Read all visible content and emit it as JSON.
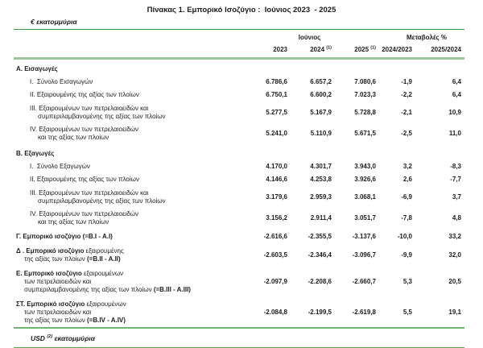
{
  "title": "Πίνακας 1. Εμπορικό Ισοζύγιο :  Ιούνιος 2023  - 2025",
  "unit_label": "€ εκατομμύρια",
  "header": {
    "period_group": "Ιούνιος",
    "changes_group": "Μεταβολές %",
    "years": [
      "2023",
      "2024",
      "2025"
    ],
    "year_sup": "(1)",
    "changes": [
      "2024/2023",
      "2025/2024"
    ]
  },
  "rows": [
    {
      "kind": "section",
      "lines": [
        [
          {
            "t": "Α. Εισαγωγές",
            "b": 1
          }
        ]
      ],
      "values": [
        "",
        "",
        "",
        "",
        ""
      ]
    },
    {
      "kind": "item",
      "lines": [
        [
          {
            "t": "I.  Σύνολο Εισαγωγών",
            "b": 0
          }
        ]
      ],
      "values": [
        "6.786,6",
        "6.657,2",
        "7.080,6",
        "-1,9",
        "6,4"
      ]
    },
    {
      "kind": "item",
      "lines": [
        [
          {
            "t": "II. Εξαιρουμένης  της αξίας των πλοίων",
            "b": 0
          }
        ]
      ],
      "values": [
        "6.750,1",
        "6.600,2",
        "7.023,3",
        "-2,2",
        "6,4"
      ]
    },
    {
      "kind": "item",
      "lines": [
        [
          {
            "t": "III. Εξαιρουμένων των πετρελαιοειδών και",
            "b": 0
          }
        ],
        [
          {
            "t": "συμπεριλαμβανομένης της αξίας των πλοίων",
            "b": 0
          }
        ]
      ],
      "values": [
        "5.277,5",
        "5.167,9",
        "5.728,8",
        "-2,1",
        "10,9"
      ]
    },
    {
      "kind": "item",
      "lines": [
        [
          {
            "t": "IV. Εξαιρουμένων των πετρελαιοειδών",
            "b": 0
          }
        ],
        [
          {
            "t": "και της αξίας των πλοίων",
            "b": 0
          }
        ]
      ],
      "values": [
        "5.241,0",
        "5.110,9",
        "5.671,5",
        "-2,5",
        "11,0"
      ]
    },
    {
      "kind": "section",
      "lines": [
        [
          {
            "t": "Β. Εξαγωγές",
            "b": 1
          }
        ]
      ],
      "values": [
        "",
        "",
        "",
        "",
        ""
      ]
    },
    {
      "kind": "item",
      "lines": [
        [
          {
            "t": "I.  Σύνολο Εξαγωγών",
            "b": 0
          }
        ]
      ],
      "values": [
        "4.170,0",
        "4.301,7",
        "3.943,0",
        "3,2",
        "-8,3"
      ]
    },
    {
      "kind": "item",
      "lines": [
        [
          {
            "t": "II. Εξαιρουμένης  της αξίας των πλοίων",
            "b": 0
          }
        ]
      ],
      "values": [
        "4.146,6",
        "4.253,8",
        "3.926,6",
        "2,6",
        "-7,7"
      ]
    },
    {
      "kind": "item",
      "lines": [
        [
          {
            "t": "III. Εξαιρουμένων των πετρελαιοειδών και",
            "b": 0
          }
        ],
        [
          {
            "t": "συμπεριλαμβανομένης της αξίας των πλοίων",
            "b": 0
          }
        ]
      ],
      "values": [
        "3.179,6",
        "2.959,3",
        "3.068,1",
        "-6,9",
        "3,7"
      ]
    },
    {
      "kind": "item",
      "lines": [
        [
          {
            "t": "IV. Εξαιρουμένων των πετρελαιοειδών",
            "b": 0
          }
        ],
        [
          {
            "t": "και της αξίας των πλοίων",
            "b": 0
          }
        ]
      ],
      "values": [
        "3.156,2",
        "2.911,4",
        "3.051,7",
        "-7,8",
        "4,8"
      ]
    },
    {
      "kind": "summary",
      "lines": [
        [
          {
            "t": "Γ. Εμπορικό ισοζύγιο (=B.I - A.I)",
            "b": 1
          }
        ]
      ],
      "values": [
        "-2.616,6",
        "-2.355,5",
        "-3.137,6",
        "-10,0",
        "33,2"
      ]
    },
    {
      "kind": "summary",
      "lines": [
        [
          {
            "t": "Δ . Εμπορικό ισοζύγιο ",
            "b": 1
          },
          {
            "t": "εξαιρουμένης",
            "b": 0
          }
        ],
        [
          {
            "t": "της αξίας των πλοίων ",
            "b": 0
          },
          {
            "t": "(=B.II - A.II)",
            "b": 1
          }
        ]
      ],
      "values": [
        "-2.603,5",
        "-2.346,4",
        "-3.096,7",
        "-9,9",
        "32,0"
      ]
    },
    {
      "kind": "summary",
      "lines": [
        [
          {
            "t": "Ε. Εμπορικό ισοζύγιο ",
            "b": 1
          },
          {
            "t": "εξαιρουμένων",
            "b": 0
          }
        ],
        [
          {
            "t": "των πετρελαιοειδών και",
            "b": 0
          }
        ],
        [
          {
            "t": "συμπεριλαμβανομένης της αξίας των πλοίων ",
            "b": 0
          },
          {
            "t": "(=B.III - A.III)",
            "b": 1
          }
        ]
      ],
      "values": [
        "-2.097,9",
        "-2.208,6",
        "-2.660,7",
        "5,3",
        "20,5"
      ]
    },
    {
      "kind": "summary",
      "lines": [
        [
          {
            "t": "ΣΤ. Εμπορικό ισοζύγιο ",
            "b": 1
          },
          {
            "t": "εξαιρουμένων",
            "b": 0
          }
        ],
        [
          {
            "t": "των πετρελαιοειδών και",
            "b": 0
          }
        ],
        [
          {
            "t": "της αξίας των πλοίων ",
            "b": 0
          },
          {
            "t": "(=B.IV - A.IV)",
            "b": 1
          }
        ]
      ],
      "values": [
        "-2.084,8",
        "-2.199,5",
        "-2.619,8",
        "5,5",
        "19,1"
      ]
    }
  ],
  "footer": {
    "currency": "USD",
    "sup": "(2)",
    "unit": "εκατομμύρια"
  },
  "colors": {
    "rule_thin": "#3f9b43",
    "rule_thick": "#9bc89b",
    "rule_bottom": "#52ab52",
    "text": "#1b1b1b"
  }
}
